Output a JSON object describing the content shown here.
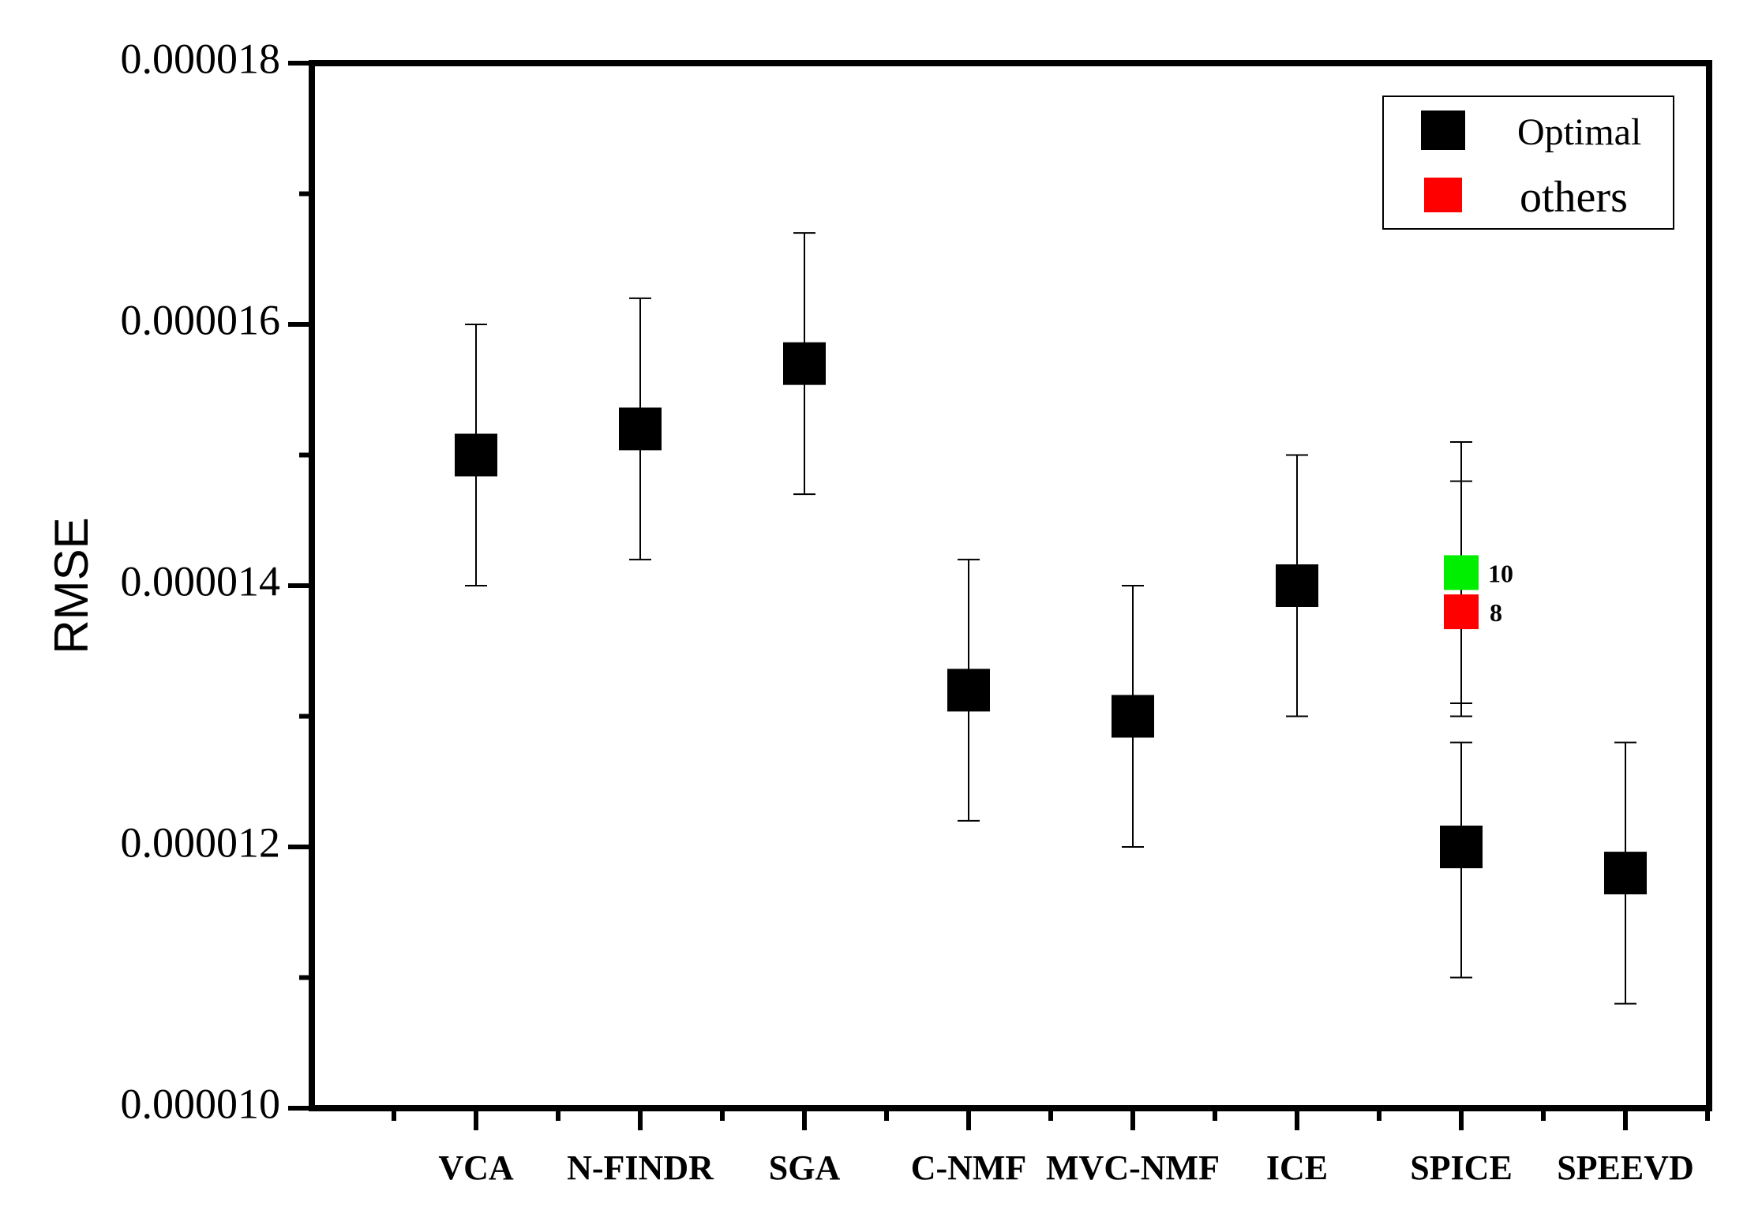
{
  "chart_data": {
    "type": "scatter",
    "ylabel": "RMSE",
    "ylim": [
      1e-05,
      1.8e-05
    ],
    "yticks": [
      "0.000010",
      "0.000012",
      "0.000014",
      "0.000016",
      "0.000018"
    ],
    "categories": [
      "VCA",
      "N-FINDR",
      "SGA",
      "C-NMF",
      "MVC-NMF",
      "ICE",
      "SPICE",
      "SPEEVD"
    ],
    "series": [
      {
        "name": "Optimal",
        "color": "#000000",
        "points": [
          {
            "category": "VCA",
            "y": 1.5e-05,
            "err_low": 1.4e-05,
            "err_high": 1.6e-05
          },
          {
            "category": "N-FINDR",
            "y": 1.52e-05,
            "err_low": 1.42e-05,
            "err_high": 1.62e-05
          },
          {
            "category": "SGA",
            "y": 1.57e-05,
            "err_low": 1.47e-05,
            "err_high": 1.67e-05
          },
          {
            "category": "C-NMF",
            "y": 1.32e-05,
            "err_low": 1.22e-05,
            "err_high": 1.42e-05
          },
          {
            "category": "MVC-NMF",
            "y": 1.3e-05,
            "err_low": 1.2e-05,
            "err_high": 1.4e-05
          },
          {
            "category": "ICE",
            "y": 1.4e-05,
            "err_low": 1.3e-05,
            "err_high": 1.5e-05
          },
          {
            "category": "SPICE",
            "y": 1.2e-05,
            "err_low": 1.1e-05,
            "err_high": 1.28e-05
          },
          {
            "category": "SPEEVD",
            "y": 1.18e-05,
            "err_low": 1.08e-05,
            "err_high": 1.28e-05
          }
        ]
      },
      {
        "name": "others",
        "color": "#ff0000",
        "points": [
          {
            "category": "SPICE",
            "y": 1.38e-05,
            "err_low": 1.3e-05,
            "err_high": 1.48e-05,
            "label": "8"
          }
        ]
      }
    ],
    "extra_points": [
      {
        "category": "SPICE",
        "y": 1.41e-05,
        "err_low": 1.31e-05,
        "err_high": 1.51e-05,
        "color": "#00ee00",
        "label": "10"
      }
    ],
    "legend": {
      "placement": "top-right",
      "entries": [
        {
          "label": "Optimal",
          "color": "#000000"
        },
        {
          "label": "others",
          "color": "#ff0000"
        }
      ]
    },
    "grid": false
  }
}
